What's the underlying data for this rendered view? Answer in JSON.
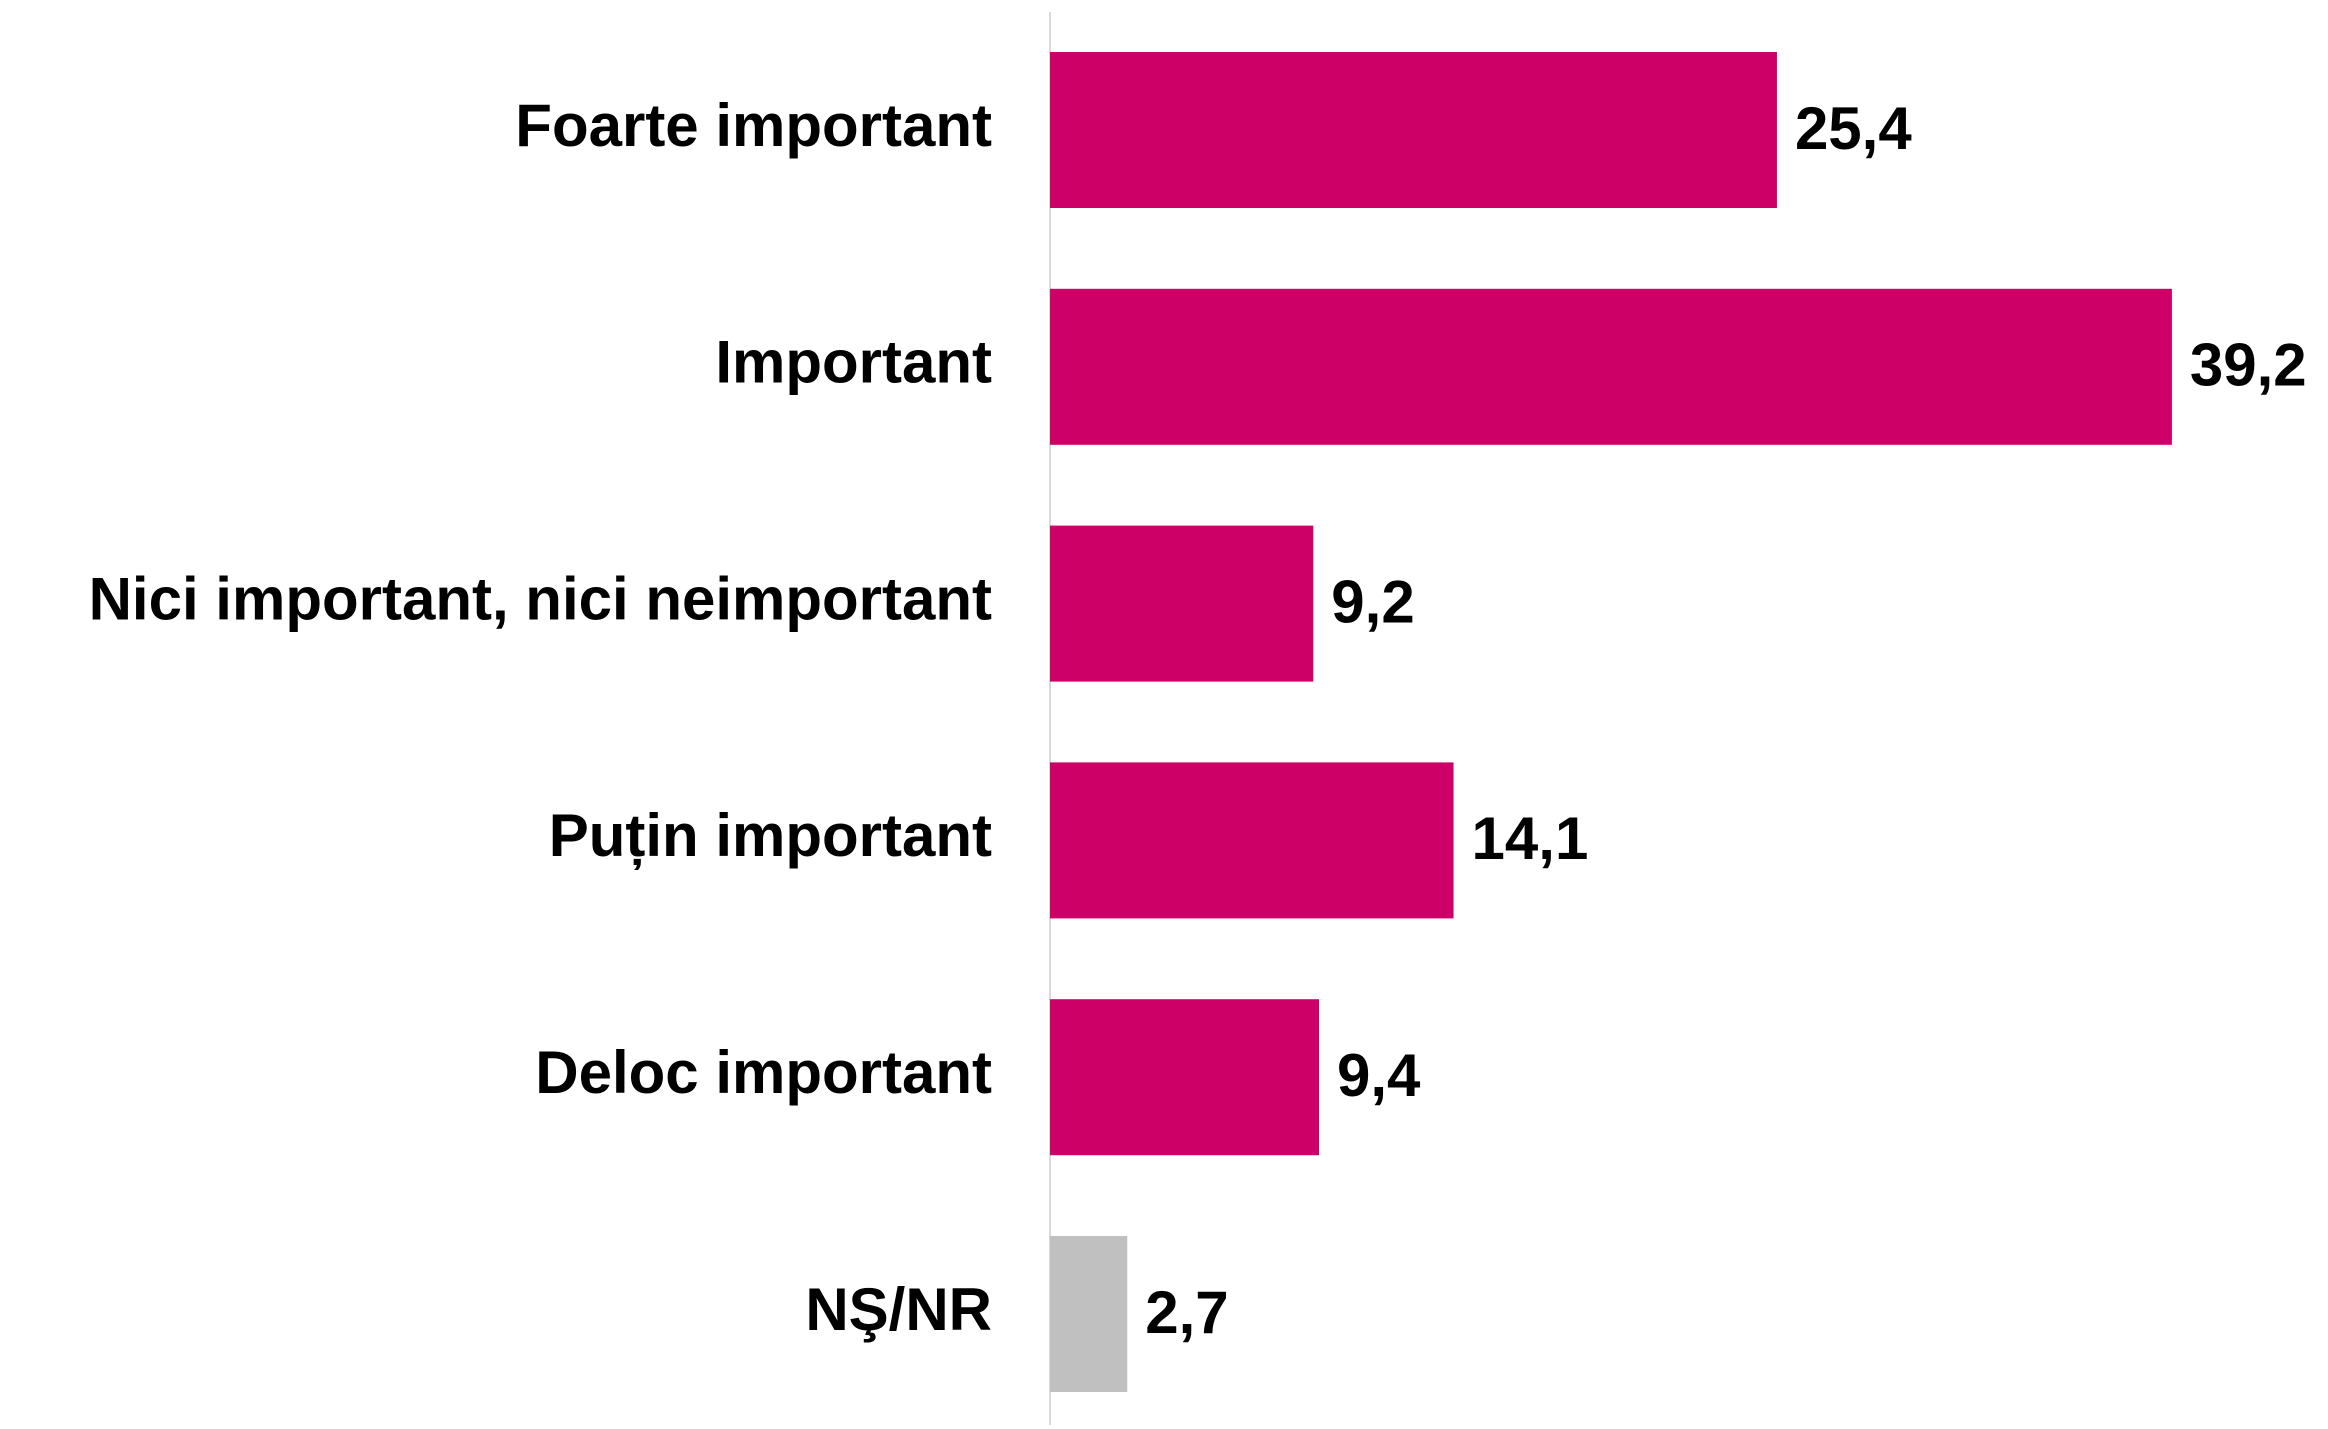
{
  "chart_data": {
    "type": "bar",
    "orientation": "horizontal",
    "categories": [
      "Foarte important",
      "Important",
      "Nici important, nici neimportant",
      "Puțin important",
      "Deloc important",
      "NŞ/NR"
    ],
    "values": [
      25.4,
      39.2,
      9.2,
      14.1,
      9.4,
      2.7
    ],
    "value_labels": [
      "25,4",
      "39,2",
      "9,2",
      "14,1",
      "9,4",
      "2,7"
    ],
    "colors": [
      "#cc0066",
      "#cc0066",
      "#cc0066",
      "#cc0066",
      "#cc0066",
      "#c0c0c0"
    ]
  }
}
